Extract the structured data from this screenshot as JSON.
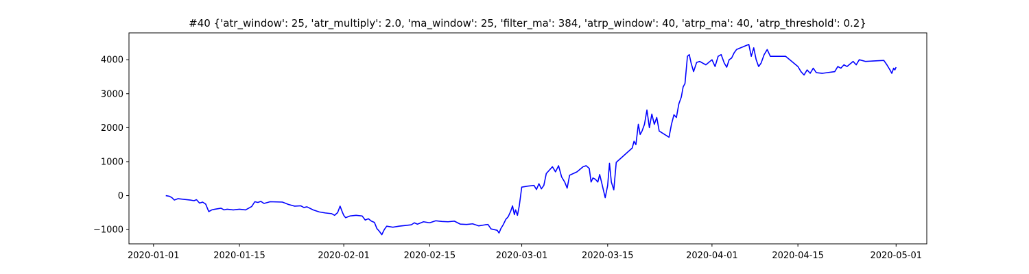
{
  "chart_data": {
    "type": "line",
    "title": "#40 {'atr_window': 25, 'atr_multiply': 2.0, 'ma_window': 25, 'filter_ma': 384, 'atrp_window': 40, 'atrp_ma': 40, 'atrp_threshold': 0.2}",
    "xlabel": "",
    "ylabel": "",
    "x_ticks": [
      "2020-01-01",
      "2020-01-15",
      "2020-02-01",
      "2020-02-15",
      "2020-03-01",
      "2020-03-15",
      "2020-04-01",
      "2020-04-15",
      "2020-05-01"
    ],
    "y_ticks": [
      -1000,
      0,
      1000,
      2000,
      3000,
      4000
    ],
    "xlim": [
      "2019-12-28",
      "2020-05-06"
    ],
    "ylim": [
      -1420,
      4790
    ],
    "grid": false,
    "colors": {
      "line": "#0000ff",
      "axes": "#000000"
    },
    "series": [
      {
        "values": [
          [
            "2020-01-03",
            0
          ],
          [
            "2020-01-03.6",
            -20
          ],
          [
            "2020-01-04",
            -60
          ],
          [
            "2020-01-04.4",
            -130
          ],
          [
            "2020-01-05",
            -90
          ],
          [
            "2020-01-06",
            -110
          ],
          [
            "2020-01-07",
            -130
          ],
          [
            "2020-01-07.6",
            -150
          ],
          [
            "2020-01-08",
            -120
          ],
          [
            "2020-01-08.5",
            -220
          ],
          [
            "2020-01-09",
            -190
          ],
          [
            "2020-01-09.5",
            -250
          ],
          [
            "2020-01-10",
            -470
          ],
          [
            "2020-01-10.5",
            -420
          ],
          [
            "2020-01-11",
            -400
          ],
          [
            "2020-01-12",
            -370
          ],
          [
            "2020-01-12.5",
            -420
          ],
          [
            "2020-01-13",
            -400
          ],
          [
            "2020-01-14",
            -420
          ],
          [
            "2020-01-15",
            -400
          ],
          [
            "2020-01-16",
            -420
          ],
          [
            "2020-01-17",
            -320
          ],
          [
            "2020-01-17.5",
            -180
          ],
          [
            "2020-01-18",
            -200
          ],
          [
            "2020-01-18.5",
            -170
          ],
          [
            "2020-01-19",
            -230
          ],
          [
            "2020-01-20",
            -180
          ],
          [
            "2020-01-22",
            -190
          ],
          [
            "2020-01-23",
            -260
          ],
          [
            "2020-01-24",
            -310
          ],
          [
            "2020-01-25",
            -300
          ],
          [
            "2020-01-25.5",
            -350
          ],
          [
            "2020-01-26",
            -330
          ],
          [
            "2020-01-27",
            -420
          ],
          [
            "2020-01-28",
            -480
          ],
          [
            "2020-01-29",
            -510
          ],
          [
            "2020-01-30",
            -530
          ],
          [
            "2020-01-30.5",
            -580
          ],
          [
            "2020-01-31",
            -500
          ],
          [
            "2020-01-31.4",
            -310
          ],
          [
            "2020-01-31.8",
            -500
          ],
          [
            "2020-02-01",
            -580
          ],
          [
            "2020-02-01.3",
            -650
          ],
          [
            "2020-02-02",
            -600
          ],
          [
            "2020-02-03",
            -580
          ],
          [
            "2020-02-04",
            -600
          ],
          [
            "2020-02-04.5",
            -720
          ],
          [
            "2020-02-05",
            -680
          ],
          [
            "2020-02-05.5",
            -750
          ],
          [
            "2020-02-06",
            -790
          ],
          [
            "2020-02-06.4",
            -970
          ],
          [
            "2020-02-06.8",
            -1050
          ],
          [
            "2020-02-07.2",
            -1150
          ],
          [
            "2020-02-07.6",
            -1000
          ],
          [
            "2020-02-08",
            -900
          ],
          [
            "2020-02-09",
            -930
          ],
          [
            "2020-02-10",
            -900
          ],
          [
            "2020-02-11",
            -880
          ],
          [
            "2020-02-12",
            -860
          ],
          [
            "2020-02-12.5",
            -800
          ],
          [
            "2020-02-13",
            -840
          ],
          [
            "2020-02-14",
            -770
          ],
          [
            "2020-02-15",
            -800
          ],
          [
            "2020-02-16",
            -740
          ],
          [
            "2020-02-17",
            -760
          ],
          [
            "2020-02-18",
            -770
          ],
          [
            "2020-02-19",
            -750
          ],
          [
            "2020-02-20",
            -840
          ],
          [
            "2020-02-21",
            -850
          ],
          [
            "2020-02-22",
            -830
          ],
          [
            "2020-02-23",
            -890
          ],
          [
            "2020-02-24",
            -860
          ],
          [
            "2020-02-24.5",
            -850
          ],
          [
            "2020-02-25",
            -980
          ],
          [
            "2020-02-26",
            -1020
          ],
          [
            "2020-02-26.3",
            -1100
          ],
          [
            "2020-02-26.6",
            -970
          ],
          [
            "2020-02-27",
            -850
          ],
          [
            "2020-02-27.4",
            -700
          ],
          [
            "2020-02-27.8",
            -620
          ],
          [
            "2020-02-28.2",
            -460
          ],
          [
            "2020-02-28.5",
            -300
          ],
          [
            "2020-02-28.8",
            -560
          ],
          [
            "2020-02-29",
            -420
          ],
          [
            "2020-02-29.3",
            -580
          ],
          [
            "2020-02-29.6",
            -300
          ],
          [
            "2020-03-01",
            250
          ],
          [
            "2020-03-02",
            280
          ],
          [
            "2020-03-03",
            300
          ],
          [
            "2020-03-03.4",
            180
          ],
          [
            "2020-03-03.8",
            350
          ],
          [
            "2020-03-04.2",
            200
          ],
          [
            "2020-03-04.6",
            300
          ],
          [
            "2020-03-05",
            650
          ],
          [
            "2020-03-05.5",
            750
          ],
          [
            "2020-03-06",
            850
          ],
          [
            "2020-03-06.5",
            700
          ],
          [
            "2020-03-07",
            880
          ],
          [
            "2020-03-07.5",
            550
          ],
          [
            "2020-03-08",
            400
          ],
          [
            "2020-03-08.4",
            220
          ],
          [
            "2020-03-08.8",
            600
          ],
          [
            "2020-03-10",
            700
          ],
          [
            "2020-03-11",
            850
          ],
          [
            "2020-03-11.5",
            880
          ],
          [
            "2020-03-12",
            800
          ],
          [
            "2020-03-12.3",
            400
          ],
          [
            "2020-03-12.6",
            520
          ],
          [
            "2020-03-13",
            480
          ],
          [
            "2020-03-13.4",
            400
          ],
          [
            "2020-03-13.7",
            620
          ],
          [
            "2020-03-14",
            400
          ],
          [
            "2020-03-14.3",
            170
          ],
          [
            "2020-03-14.6",
            -60
          ],
          [
            "2020-03-15",
            300
          ],
          [
            "2020-03-15.3",
            950
          ],
          [
            "2020-03-15.6",
            400
          ],
          [
            "2020-03-16",
            170
          ],
          [
            "2020-03-16.4",
            980
          ],
          [
            "2020-03-19",
            1400
          ],
          [
            "2020-03-19.3",
            1600
          ],
          [
            "2020-03-19.6",
            1500
          ],
          [
            "2020-03-20",
            2100
          ],
          [
            "2020-03-20.3",
            1800
          ],
          [
            "2020-03-20.6",
            1900
          ],
          [
            "2020-03-21",
            2100
          ],
          [
            "2020-03-21.4",
            2520
          ],
          [
            "2020-03-21.8",
            2000
          ],
          [
            "2020-03-22.2",
            2400
          ],
          [
            "2020-03-22.6",
            2100
          ],
          [
            "2020-03-23",
            2300
          ],
          [
            "2020-03-23.4",
            1900
          ],
          [
            "2020-03-25",
            1720
          ],
          [
            "2020-03-25.4",
            2100
          ],
          [
            "2020-03-25.8",
            2380
          ],
          [
            "2020-03-26.2",
            2300
          ],
          [
            "2020-03-26.6",
            2700
          ],
          [
            "2020-03-27",
            2900
          ],
          [
            "2020-03-27.3",
            3200
          ],
          [
            "2020-03-27.6",
            3300
          ],
          [
            "2020-03-28",
            4100
          ],
          [
            "2020-03-28.3",
            4150
          ],
          [
            "2020-03-28.6",
            3900
          ],
          [
            "2020-03-29",
            3650
          ],
          [
            "2020-03-29.5",
            3920
          ],
          [
            "2020-03-30",
            3950
          ],
          [
            "2020-03-31",
            3850
          ],
          [
            "2020-04-01",
            4000
          ],
          [
            "2020-04-01.5",
            3800
          ],
          [
            "2020-04-02",
            4100
          ],
          [
            "2020-04-02.5",
            4150
          ],
          [
            "2020-04-03",
            3900
          ],
          [
            "2020-04-03.4",
            3780
          ],
          [
            "2020-04-03.8",
            4000
          ],
          [
            "2020-04-04.2",
            4050
          ],
          [
            "2020-04-04.6",
            4200
          ],
          [
            "2020-04-05",
            4300
          ],
          [
            "2020-04-07",
            4450
          ],
          [
            "2020-04-07.4",
            4100
          ],
          [
            "2020-04-07.8",
            4350
          ],
          [
            "2020-04-08.2",
            4000
          ],
          [
            "2020-04-08.6",
            3800
          ],
          [
            "2020-04-09",
            3900
          ],
          [
            "2020-04-09.5",
            4150
          ],
          [
            "2020-04-10",
            4300
          ],
          [
            "2020-04-10.5",
            4100
          ],
          [
            "2020-04-13",
            4100
          ],
          [
            "2020-04-14",
            3950
          ],
          [
            "2020-04-15",
            3800
          ],
          [
            "2020-04-15.5",
            3650
          ],
          [
            "2020-04-16",
            3550
          ],
          [
            "2020-04-16.5",
            3700
          ],
          [
            "2020-04-17",
            3600
          ],
          [
            "2020-04-17.5",
            3750
          ],
          [
            "2020-04-18",
            3620
          ],
          [
            "2020-04-19",
            3600
          ],
          [
            "2020-04-21",
            3650
          ],
          [
            "2020-04-21.5",
            3800
          ],
          [
            "2020-04-22",
            3750
          ],
          [
            "2020-04-22.5",
            3850
          ],
          [
            "2020-04-23",
            3800
          ],
          [
            "2020-04-24",
            3950
          ],
          [
            "2020-04-24.5",
            3850
          ],
          [
            "2020-04-25",
            4000
          ],
          [
            "2020-04-26",
            3950
          ],
          [
            "2020-04-29",
            3980
          ],
          [
            "2020-04-29.5",
            3850
          ],
          [
            "2020-04-30",
            3700
          ],
          [
            "2020-04-30.3",
            3600
          ],
          [
            "2020-04-30.6",
            3750
          ],
          [
            "2020-04-30.8",
            3700
          ],
          [
            "2020-05-01",
            3780
          ]
        ]
      }
    ]
  }
}
